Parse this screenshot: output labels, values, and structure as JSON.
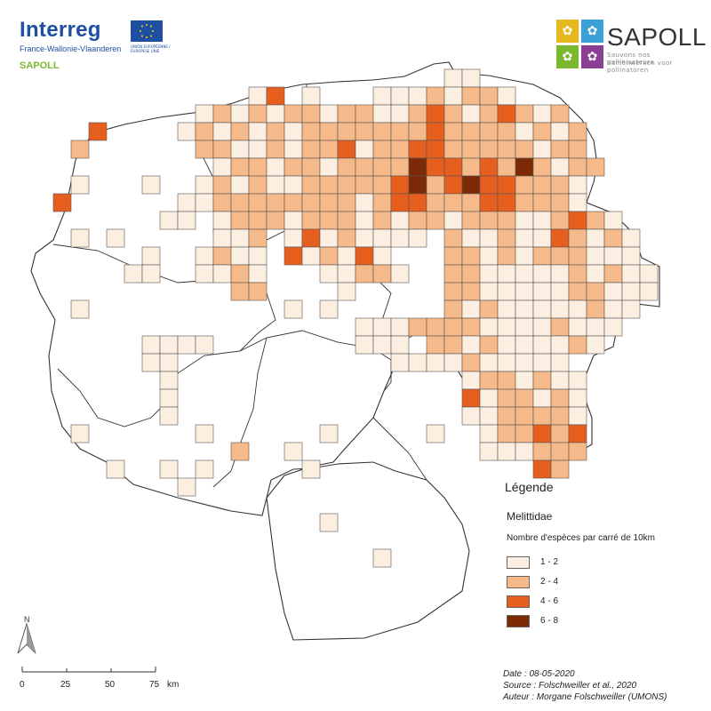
{
  "logos": {
    "interreg": "Interreg",
    "interreg_region": "France-Wallonie-Vlaanderen",
    "eu_caption": "UNION EUROPÉENNE / EUROPESE UNIE",
    "program": "SAPOLL",
    "sapoll": "SAPOLL",
    "sapoll_tagline_fr": "Sauvons nos pollinisateurs",
    "sapoll_tagline_nl": "Samenwerken voor pollinatoren"
  },
  "legend": {
    "title": "Légende",
    "taxon": "Melittidae",
    "subtitle": "Nombre d'espèces par carré de 10km",
    "classes": [
      {
        "label": "1 - 2",
        "color": "#fdeee2"
      },
      {
        "label": "2 - 4",
        "color": "#f6b989"
      },
      {
        "label": "4 - 6",
        "color": "#e65f1f"
      },
      {
        "label": "6 - 8",
        "color": "#7c2a06"
      }
    ]
  },
  "credits": {
    "date": "Date : 08-05-2020",
    "source": "Source : Folschweiller et al., 2020",
    "author": "Auteur : Morgane Folschweiller (UMONS)"
  },
  "scale_bar": {
    "labels": [
      "0",
      "25",
      "50",
      "75"
    ],
    "unit": "km"
  },
  "north_arrow": {
    "label": "N"
  },
  "map": {
    "grid_note_colors": {
      "border": "#555555",
      "boundary": "#222222"
    }
  }
}
